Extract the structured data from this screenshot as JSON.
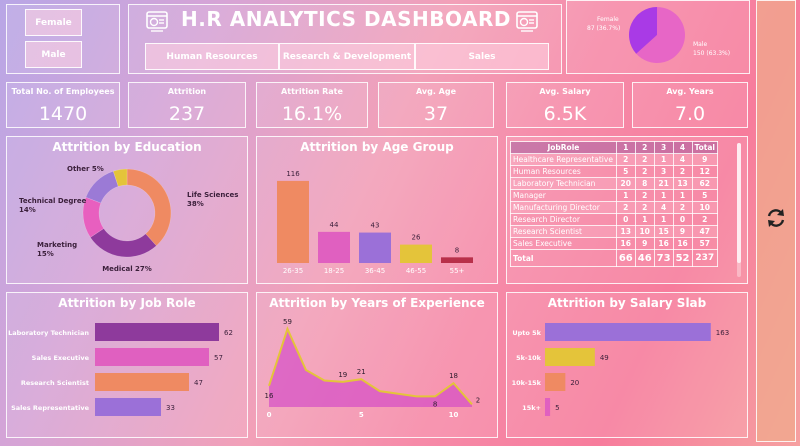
{
  "header": {
    "title": "H.R ANALYTICS DASHBOARD"
  },
  "gender_filter": {
    "female": "Female",
    "male": "Male"
  },
  "dept_filter": {
    "items": [
      "Human Resources",
      "Research & Development",
      "Sales"
    ]
  },
  "gender_pie": {
    "female_label": "Female",
    "female_value": "87 (36.7%)",
    "male_label": "Male",
    "male_value": "150 (63.3%)",
    "female_pct": 36.7,
    "male_pct": 63.3,
    "colors": {
      "female": "#a93ae6",
      "male": "#e766c6"
    }
  },
  "kpis": [
    {
      "label": "Total No. of Employees",
      "value": "1470"
    },
    {
      "label": "Attrition",
      "value": "237"
    },
    {
      "label": "Attrition Rate",
      "value": "16.1%"
    },
    {
      "label": "Avg. Age",
      "value": "37"
    },
    {
      "label": "Avg. Salary",
      "value": "6.5K"
    },
    {
      "label": "Avg. Years",
      "value": "7.0"
    }
  ],
  "education": {
    "title": "Attrition by Education"
  },
  "age_group": {
    "title": "Attrition by Age Group"
  },
  "job_role_table": {
    "headers": [
      "JobRole",
      "1",
      "2",
      "3",
      "4",
      "Total"
    ],
    "rows": [
      [
        "Healthcare Representative",
        "2",
        "2",
        "1",
        "4",
        "9"
      ],
      [
        "Human Resources",
        "5",
        "2",
        "3",
        "2",
        "12"
      ],
      [
        "Laboratory Technician",
        "20",
        "8",
        "21",
        "13",
        "62"
      ],
      [
        "Manager",
        "1",
        "2",
        "1",
        "1",
        "5"
      ],
      [
        "Manufacturing Director",
        "2",
        "2",
        "4",
        "2",
        "10"
      ],
      [
        "Research Director",
        "0",
        "1",
        "1",
        "0",
        "2"
      ],
      [
        "Research Scientist",
        "13",
        "10",
        "15",
        "9",
        "47"
      ],
      [
        "Sales Executive",
        "16",
        "9",
        "16",
        "16",
        "57"
      ]
    ],
    "total": [
      "Total",
      "66",
      "46",
      "73",
      "52",
      "237"
    ]
  },
  "job_role": {
    "title": "Attrition by Job Role"
  },
  "experience": {
    "title": "Attrition by Years of Experience"
  },
  "salary": {
    "title": "Attrition by Salary Slab"
  },
  "side": {
    "icon": "refresh-icon"
  },
  "chart_data": [
    {
      "type": "pie",
      "title": "Attrition by Education",
      "categories": [
        "Life Sciences",
        "Medical",
        "Marketing",
        "Technical Degree",
        "Other"
      ],
      "values": [
        38,
        27,
        15,
        14,
        5
      ],
      "labels": [
        "Life Sciences\n38%",
        "Medical 27%",
        "Marketing\n15%",
        "Technical Degree\n14%",
        "Other 5%"
      ],
      "colors": [
        "#ef8a62",
        "#8e3a9c",
        "#e85fbf",
        "#9b7ad6",
        "#e4c43a"
      ]
    },
    {
      "type": "bar",
      "title": "Attrition by Age Group",
      "categories": [
        "26-35",
        "18-25",
        "36-45",
        "46-55",
        "55+"
      ],
      "values": [
        116,
        44,
        43,
        26,
        8
      ],
      "colors": [
        "#ef8a62",
        "#e060c0",
        "#9b70d8",
        "#e4c43a",
        "#b8304a"
      ],
      "ylim": [
        0,
        130
      ]
    },
    {
      "type": "bar",
      "orientation": "horizontal",
      "title": "Attrition by Job Role",
      "categories": [
        "Laboratory Technician",
        "Sales Executive",
        "Research Scientist",
        "Sales Representative"
      ],
      "values": [
        62,
        57,
        47,
        33
      ],
      "colors": [
        "#8e3a9c",
        "#e060c0",
        "#ef8a62",
        "#9b70d8"
      ],
      "xlim": [
        0,
        70
      ]
    },
    {
      "type": "area",
      "title": "Attrition by Years of Experience",
      "x": [
        0,
        1,
        2,
        3,
        4,
        5,
        6,
        7,
        8,
        9,
        10,
        11
      ],
      "values": [
        16,
        59,
        28,
        20,
        19,
        21,
        12,
        10,
        8,
        8,
        18,
        2
      ],
      "point_labels": {
        "0": "16",
        "1": "59",
        "4": "19",
        "5": "21",
        "9": "8",
        "10": "18",
        "11": "2"
      },
      "xticks": [
        "0",
        "5",
        "10"
      ],
      "ylim": [
        0,
        65
      ]
    },
    {
      "type": "bar",
      "orientation": "horizontal",
      "title": "Attrition by Salary Slab",
      "categories": [
        "Upto 5k",
        "5k-10k",
        "10k-15k",
        "15k+"
      ],
      "values": [
        163,
        49,
        20,
        5
      ],
      "colors": [
        "#9b70d8",
        "#e4c43a",
        "#ef8a62",
        "#e060c0"
      ],
      "xlim": [
        0,
        175
      ]
    }
  ]
}
